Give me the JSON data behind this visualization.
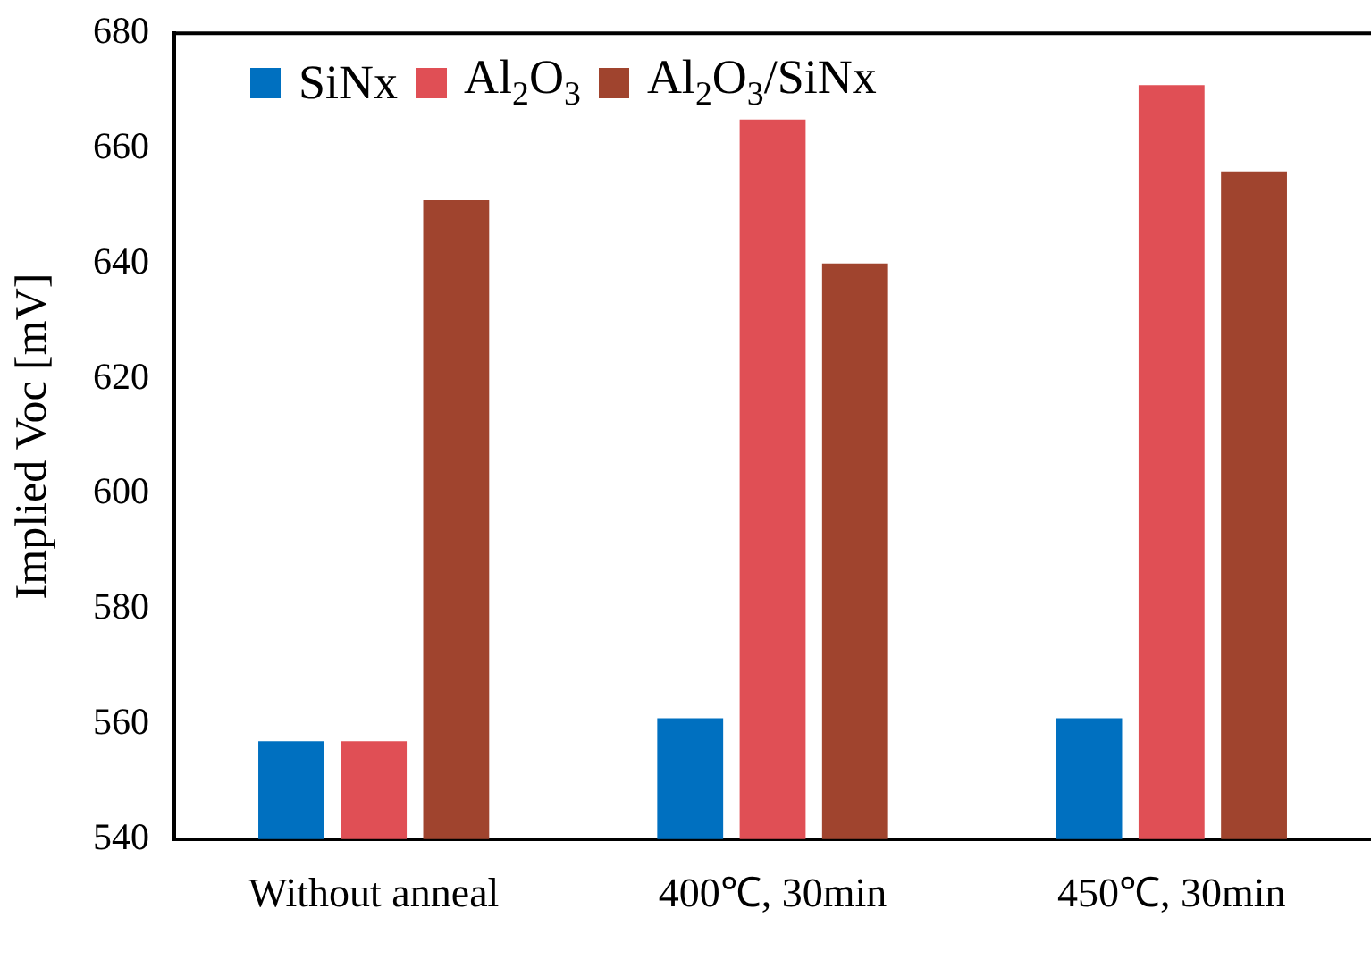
{
  "chart_data": {
    "type": "bar",
    "ylabel": "Implied Voc [mV]",
    "categories": [
      "Without anneal",
      "400℃, 30min",
      "450℃, 30min"
    ],
    "series": [
      {
        "name": "SiNx",
        "color": "#0070c0",
        "values": [
          557,
          561,
          561
        ]
      },
      {
        "name": "Al$_{2}$O$_{3}$",
        "color": "#e04f55",
        "values": [
          557,
          665,
          671
        ]
      },
      {
        "name": "Al$_{2}$O$_{3}$/SiNx",
        "color": "#a0442e",
        "values": [
          651,
          640,
          656
        ]
      }
    ],
    "ylim": [
      540,
      680
    ],
    "yticks": [
      540,
      560,
      580,
      600,
      620,
      640,
      660,
      680
    ],
    "grid": false,
    "legend": "top left"
  }
}
